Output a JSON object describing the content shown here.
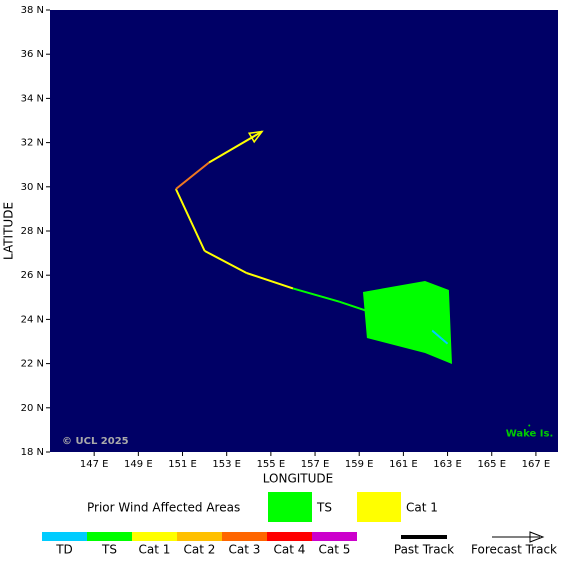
{
  "map": {
    "xlabel": "LONGITUDE",
    "ylabel": "LATITUDE",
    "background": "#000066",
    "xlim": [
      145,
      168
    ],
    "ylim": [
      18,
      38
    ],
    "xticks": [
      {
        "value": 147,
        "label": "147 E"
      },
      {
        "value": 149,
        "label": "149 E"
      },
      {
        "value": 151,
        "label": "151 E"
      },
      {
        "value": 153,
        "label": "153 E"
      },
      {
        "value": 155,
        "label": "155 E"
      },
      {
        "value": 157,
        "label": "157 E"
      },
      {
        "value": 159,
        "label": "159 E"
      },
      {
        "value": 161,
        "label": "161 E"
      },
      {
        "value": 163,
        "label": "163 E"
      },
      {
        "value": 165,
        "label": "165 E"
      },
      {
        "value": 167,
        "label": "167 E"
      }
    ],
    "yticks": [
      {
        "value": 18,
        "label": "18 N"
      },
      {
        "value": 20,
        "label": "20 N"
      },
      {
        "value": 22,
        "label": "22 N"
      },
      {
        "value": 24,
        "label": "24 N"
      },
      {
        "value": 26,
        "label": "26 N"
      },
      {
        "value": 28,
        "label": "28 N"
      },
      {
        "value": 30,
        "label": "30 N"
      },
      {
        "value": 32,
        "label": "32 N"
      },
      {
        "value": 34,
        "label": "34 N"
      },
      {
        "value": 36,
        "label": "36 N"
      },
      {
        "value": 38,
        "label": "38 N"
      }
    ],
    "track": {
      "lon": [
        163.0,
        162.3,
        160.4,
        159.3,
        158.1,
        156.0,
        153.9,
        152.0,
        150.7,
        152.2,
        154.6
      ],
      "lat": [
        22.9,
        23.5,
        24.1,
        24.4,
        24.8,
        25.4,
        26.1,
        27.1,
        29.9,
        31.1,
        32.5
      ],
      "segment_colors": [
        "#00ccff",
        "#00ff00",
        "#00ff00",
        "#00ff00",
        "#00ff00",
        "#ffff00",
        "#ffff00",
        "#ffff00",
        "#f07820",
        "#ffff00"
      ]
    },
    "areas": [
      {
        "color": "#00ff00",
        "lon": [
          159.17,
          161.98,
          163.06,
          163.2,
          161.98,
          159.35
        ],
        "lat": [
          25.24,
          25.74,
          25.33,
          21.98,
          22.48,
          23.16
        ]
      }
    ],
    "places": [
      {
        "label": "Wake Is.",
        "lon": 166.7,
        "lat": 19.2,
        "color": "#00cc00"
      }
    ],
    "credit": "© UCL 2025"
  },
  "legend": {
    "areas_title": "Prior Wind Affected Areas",
    "areas": [
      {
        "label": "TS",
        "color": "#00ff00"
      },
      {
        "label": "Cat 1",
        "color": "#ffff00"
      }
    ],
    "categories": [
      {
        "label": "TD",
        "color": "#00ccff"
      },
      {
        "label": "TS",
        "color": "#00ff00"
      },
      {
        "label": "Cat 1",
        "color": "#ffff00"
      },
      {
        "label": "Cat 2",
        "color": "#ffc000"
      },
      {
        "label": "Cat 3",
        "color": "#ff6600"
      },
      {
        "label": "Cat 4",
        "color": "#ff0000"
      },
      {
        "label": "Cat 5",
        "color": "#cc00cc"
      }
    ],
    "past_track": "Past Track",
    "forecast_track": "Forecast Track"
  }
}
